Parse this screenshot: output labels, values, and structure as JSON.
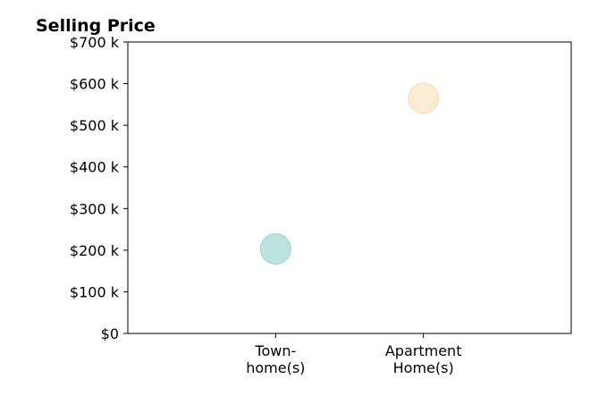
{
  "chart_data": {
    "type": "scatter",
    "title": "Selling Price",
    "xlabel": "",
    "ylabel": "",
    "ylim": [
      0,
      700000
    ],
    "xlim": [
      0,
      3
    ],
    "y_ticks": [
      {
        "value": 0,
        "label": "$0"
      },
      {
        "value": 100000,
        "label": "$100 k"
      },
      {
        "value": 200000,
        "label": "$200 k"
      },
      {
        "value": 300000,
        "label": "$300 k"
      },
      {
        "value": 400000,
        "label": "$400 k"
      },
      {
        "value": 500000,
        "label": "$500 k"
      },
      {
        "value": 600000,
        "label": "$600 k"
      },
      {
        "value": 700000,
        "label": "$700 k"
      }
    ],
    "categories": [
      {
        "label_lines": [
          "Town-",
          "home(s)"
        ],
        "x": 1
      },
      {
        "label_lines": [
          "Apartment",
          "Home(s)"
        ],
        "x": 2
      }
    ],
    "points": [
      {
        "category": "Town-home(s)",
        "x": 1,
        "y": 203000,
        "color": "#bde3e0",
        "stroke": "#9fd3ce"
      },
      {
        "category": "Apartment Home(s)",
        "x": 2,
        "y": 565000,
        "color": "#faecd2",
        "stroke": "#f3dcb4"
      }
    ],
    "grid": false,
    "legend": "none"
  }
}
